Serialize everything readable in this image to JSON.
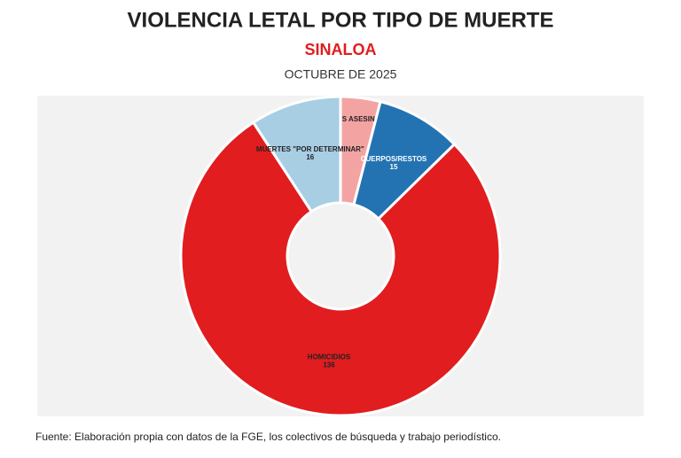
{
  "chart_data": {
    "type": "donut",
    "title": "VIOLENCIA LETAL POR TIPO DE MUERTE",
    "subtitle": "SINALOA",
    "date": "OCTUBRE DE 2025",
    "categories": [
      "AGENTES ASESINADOS",
      "CUERPOS/RESTOS",
      "HOMICIDIOS",
      "MUERTES \"POR DETERMINAR\""
    ],
    "values": [
      7,
      15,
      136,
      16
    ],
    "colors": [
      "#f4a3a3",
      "#2373b3",
      "#e11d1f",
      "#a8cee4"
    ],
    "source": "Fuente: Elaboración propia con datos de la FGE, los colectivos de búsqueda y trabajo periodístico."
  }
}
